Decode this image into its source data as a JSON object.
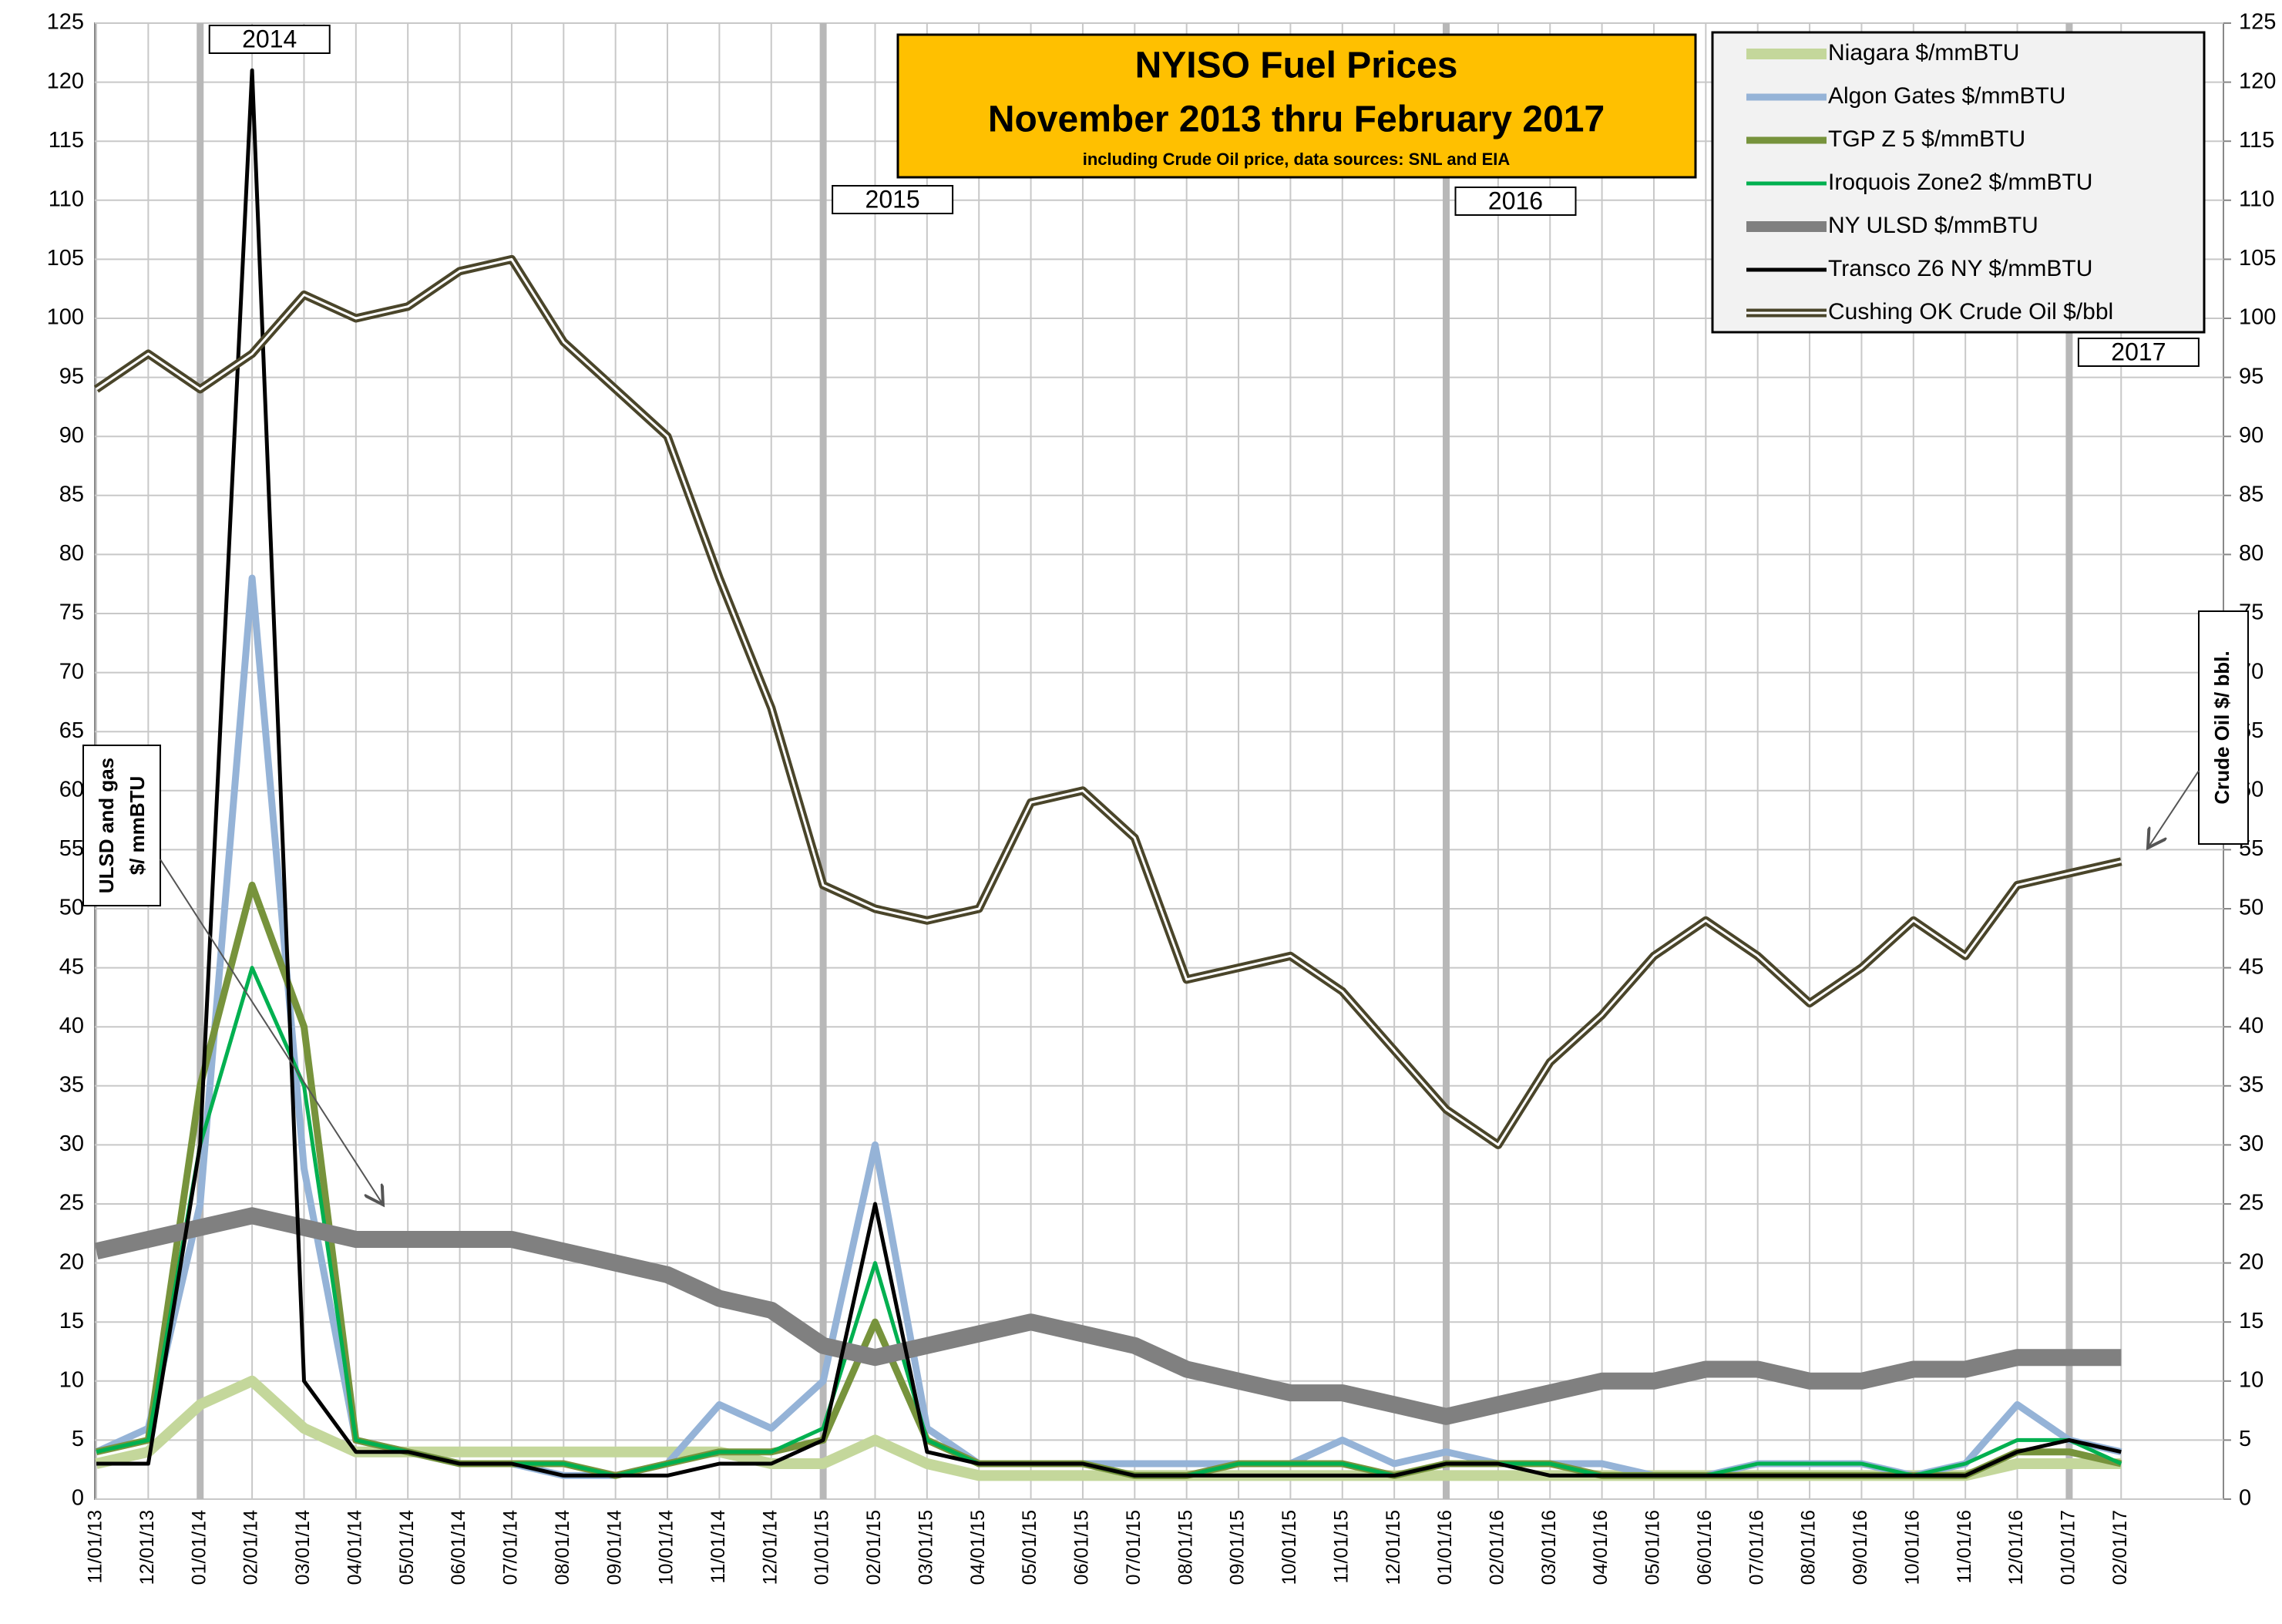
{
  "chart_data": {
    "type": "line",
    "title": [
      "NYISO Fuel Prices",
      "November 2013   thru   February 2017"
    ],
    "subtitle": "including Crude Oil price, data sources: SNL and EIA",
    "y_label": [
      "ULSD and gas",
      "$/ mmBTU"
    ],
    "y2_label": "Crude Oil   $/ bbl.",
    "categories": [
      "11/01/13",
      "12/01/13",
      "01/01/14",
      "02/01/14",
      "03/01/14",
      "04/01/14",
      "05/01/14",
      "06/01/14",
      "07/01/14",
      "08/01/14",
      "09/01/14",
      "10/01/14",
      "11/01/14",
      "12/01/14",
      "01/01/15",
      "02/01/15",
      "03/01/15",
      "04/01/15",
      "05/01/15",
      "06/01/15",
      "07/01/15",
      "08/01/15",
      "09/01/15",
      "10/01/15",
      "11/01/15",
      "12/01/15",
      "01/01/16",
      "02/01/16",
      "03/01/16",
      "04/01/16",
      "05/01/16",
      "06/01/16",
      "07/01/16",
      "08/01/16",
      "09/01/16",
      "10/01/16",
      "11/01/16",
      "12/01/16",
      "01/01/17",
      "02/01/17"
    ],
    "series": [
      {
        "name": "Niagara  $/mmBTU",
        "color": "#c4d79b",
        "width": 14,
        "values": [
          3,
          4,
          8,
          10,
          6,
          4,
          4,
          4,
          4,
          4,
          4,
          4,
          4,
          3,
          3,
          5,
          3,
          2,
          2,
          2,
          2,
          2,
          2,
          2,
          2,
          2,
          2,
          2,
          2,
          2,
          2,
          2,
          2,
          2,
          2,
          2,
          2,
          3,
          3,
          3
        ]
      },
      {
        "name": "Algon Gates  $/mmBTU",
        "color": "#95b3d7",
        "width": 9,
        "values": [
          4,
          6,
          25,
          78,
          28,
          5,
          4,
          3,
          3,
          2,
          2,
          3,
          8,
          6,
          10,
          30,
          6,
          3,
          3,
          3,
          3,
          3,
          3,
          3,
          5,
          3,
          4,
          3,
          3,
          3,
          2,
          2,
          3,
          3,
          3,
          2,
          3,
          8,
          5,
          4
        ]
      },
      {
        "name": "TGP Z 5  $/mmBTU",
        "color": "#77933c",
        "width": 9,
        "values": [
          4,
          5,
          35,
          52,
          40,
          5,
          4,
          3,
          3,
          3,
          2,
          3,
          4,
          4,
          5,
          15,
          5,
          3,
          3,
          3,
          2,
          2,
          3,
          3,
          3,
          2,
          3,
          3,
          3,
          2,
          2,
          2,
          2,
          2,
          2,
          2,
          2,
          4,
          4,
          3
        ]
      },
      {
        "name": "Iroquois Zone2  $/mmBTU",
        "color": "#00b050",
        "width": 5,
        "values": [
          4,
          5,
          30,
          45,
          35,
          5,
          4,
          3,
          3,
          3,
          2,
          3,
          4,
          4,
          6,
          20,
          5,
          3,
          3,
          3,
          2,
          2,
          3,
          3,
          3,
          2,
          3,
          3,
          3,
          2,
          2,
          2,
          3,
          3,
          3,
          2,
          3,
          5,
          5,
          3
        ]
      },
      {
        "name": "NY ULSD  $/mmBTU",
        "color": "#808080",
        "width": 22,
        "values": [
          21,
          22,
          23,
          24,
          23,
          22,
          22,
          22,
          22,
          21,
          20,
          19,
          17,
          16,
          13,
          12,
          13,
          14,
          15,
          14,
          13,
          11,
          10,
          9,
          9,
          8,
          7,
          8,
          9,
          10,
          10,
          11,
          11,
          10,
          10,
          11,
          11,
          12,
          12,
          12
        ]
      },
      {
        "name": "Transco Z6 NY  $/mmBTU",
        "color": "#000000",
        "width": 5,
        "values": [
          3,
          3,
          30,
          121,
          10,
          4,
          4,
          3,
          3,
          2,
          2,
          2,
          3,
          3,
          5,
          25,
          4,
          3,
          3,
          3,
          2,
          2,
          2,
          2,
          2,
          2,
          3,
          3,
          2,
          2,
          2,
          2,
          2,
          2,
          2,
          2,
          2,
          4,
          5,
          4
        ]
      },
      {
        "name": "Cushing OK Crude Oil $/bbl",
        "color": "#4a452a",
        "width": 11,
        "double": true,
        "axis": "y2",
        "values": [
          94,
          97,
          94,
          97,
          102,
          100,
          101,
          104,
          105,
          98,
          94,
          90,
          78,
          67,
          52,
          50,
          49,
          50,
          59,
          60,
          56,
          44,
          45,
          46,
          43,
          38,
          33,
          30,
          37,
          41,
          46,
          49,
          46,
          42,
          45,
          49,
          46,
          52,
          53,
          54
        ]
      }
    ],
    "annotations": [
      {
        "text": "2014",
        "x": "01/01/14"
      },
      {
        "text": "2015",
        "x": "01/01/15"
      },
      {
        "text": "2016",
        "x": "01/01/16"
      },
      {
        "text": "2017",
        "x": "01/01/17"
      }
    ],
    "ylim": [
      0,
      125
    ],
    "yticks": [
      0,
      5,
      10,
      15,
      20,
      25,
      30,
      35,
      40,
      45,
      50,
      55,
      60,
      65,
      70,
      75,
      80,
      85,
      90,
      95,
      100,
      105,
      110,
      115,
      120,
      125
    ],
    "y2lim": [
      0,
      125
    ],
    "y2ticks": [
      0,
      5,
      10,
      15,
      20,
      25,
      30,
      35,
      40,
      45,
      50,
      55,
      60,
      65,
      70,
      75,
      80,
      85,
      90,
      95,
      100,
      105,
      110,
      115,
      120,
      125
    ],
    "grid": true,
    "legend": "upper right"
  }
}
